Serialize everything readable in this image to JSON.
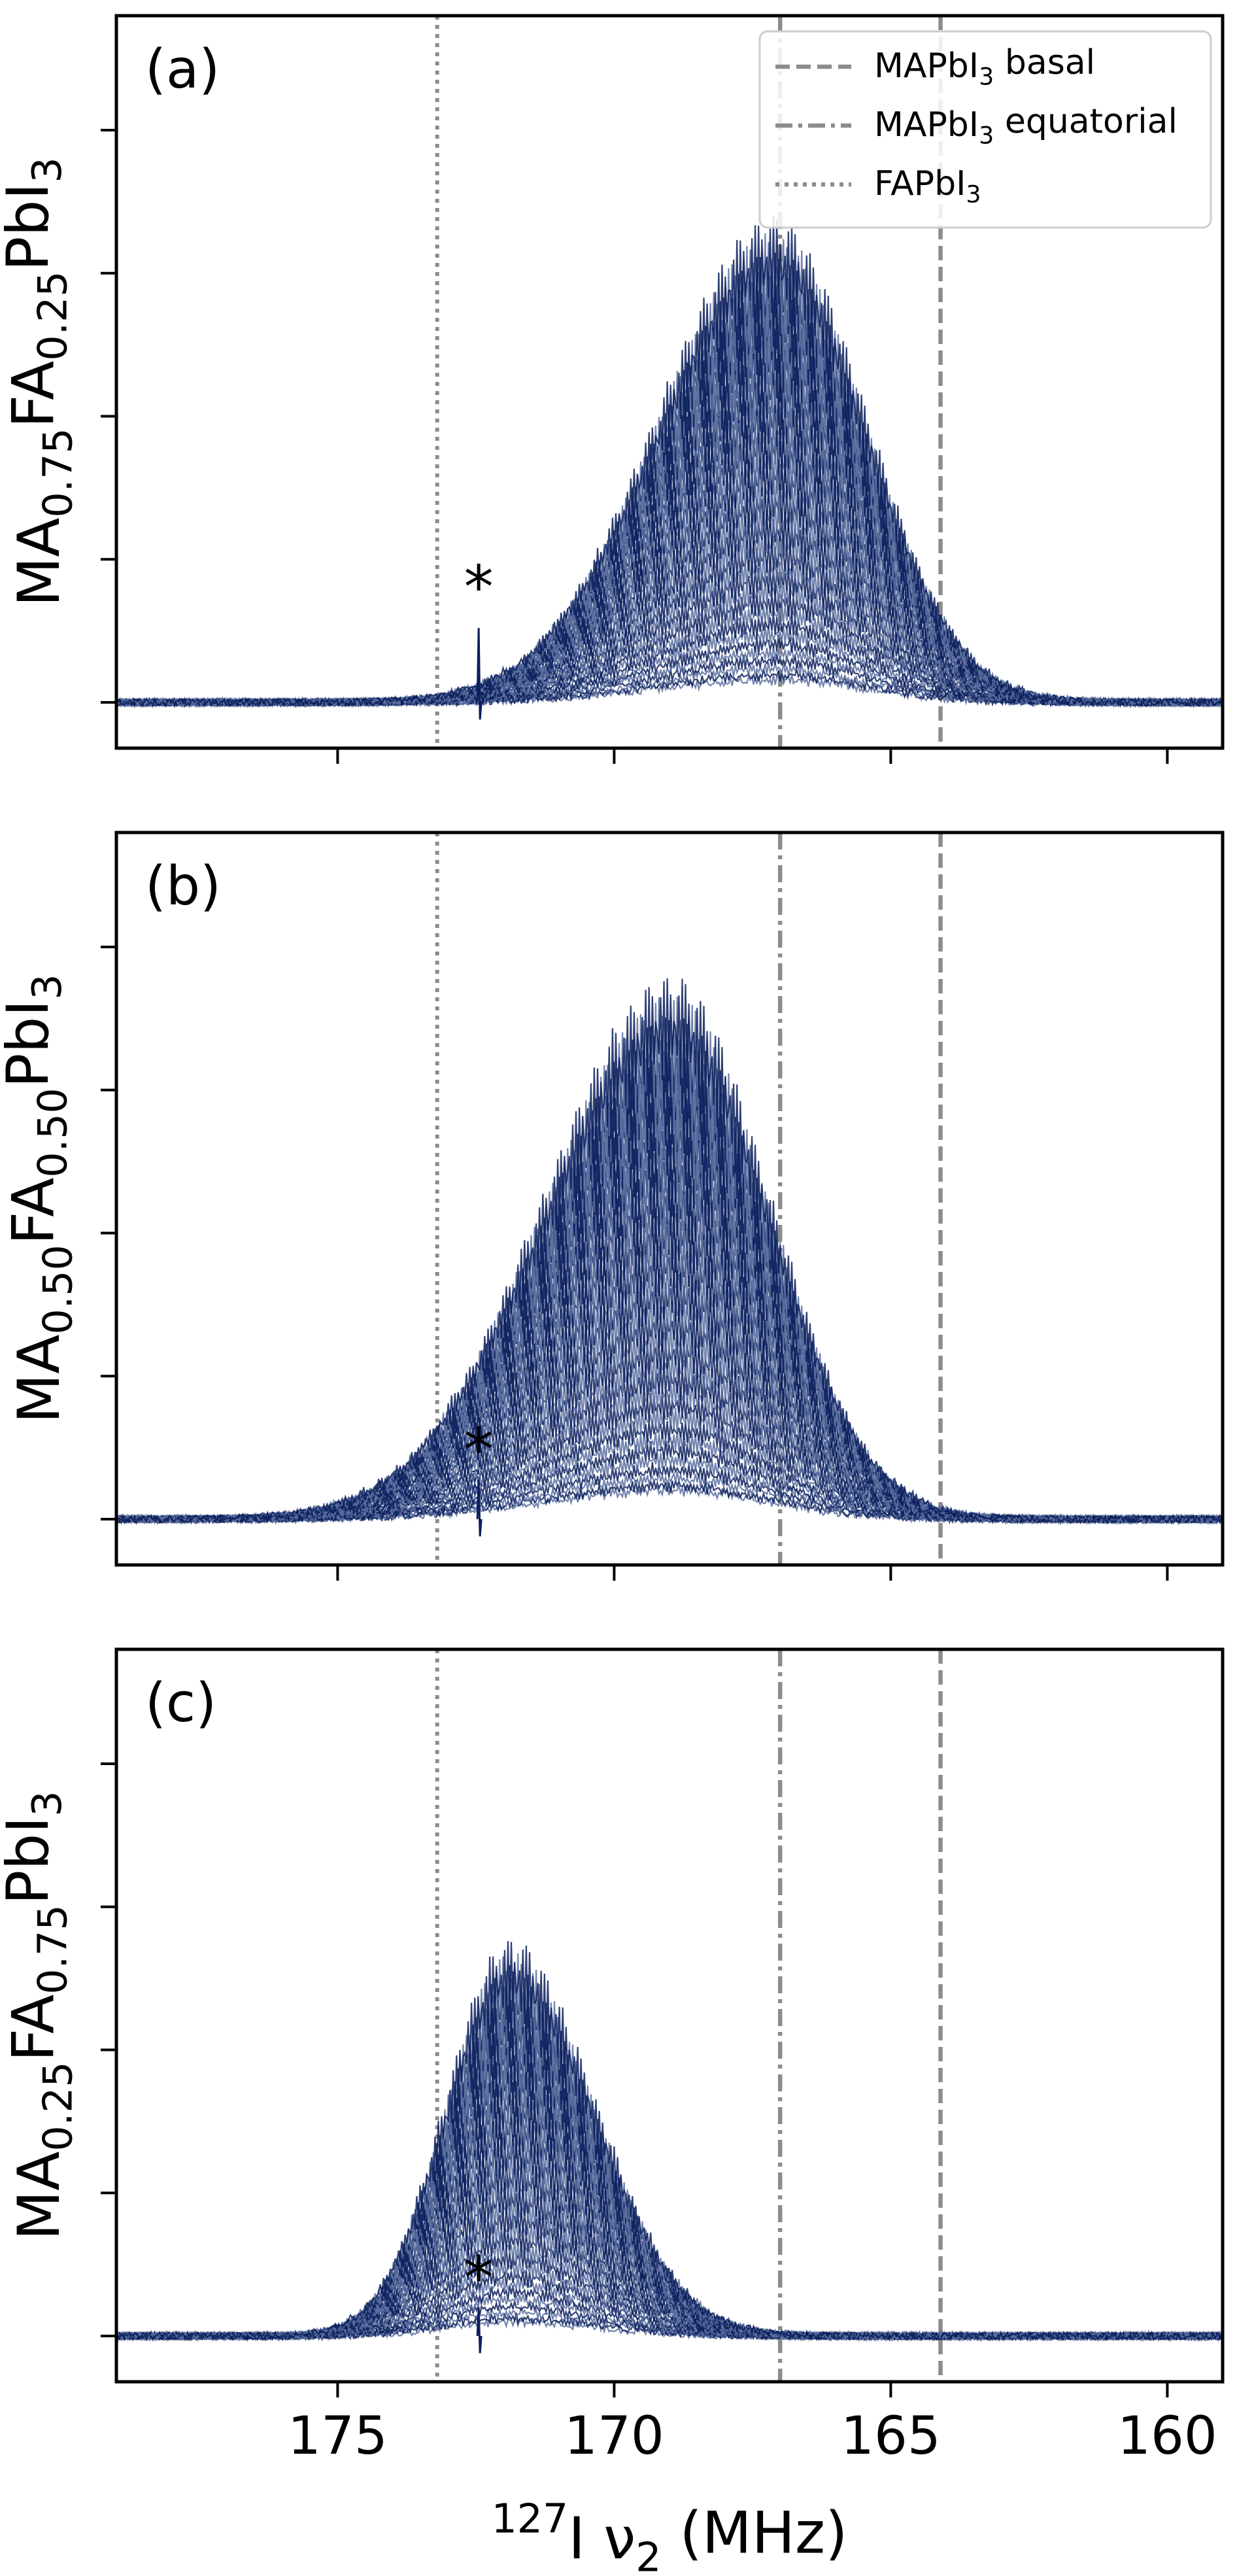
{
  "chart_data": [
    {
      "type": "line",
      "panel_label": "(a)",
      "ylabel_parts": [
        {
          "t": "MA",
          "s": "base"
        },
        {
          "t": "0.75",
          "s": "sub"
        },
        {
          "t": "FA",
          "s": "base"
        },
        {
          "t": "0.25",
          "s": "sub"
        },
        {
          "t": "PbI",
          "s": "base"
        },
        {
          "t": "3",
          "s": "sub"
        }
      ],
      "xlim": [
        179,
        159
      ],
      "ylim": [
        -0.08,
        1.2
      ],
      "y_ticks": [
        0,
        0.25,
        0.5,
        0.75,
        1.0
      ],
      "x_ticks": [
        175,
        170,
        165,
        160
      ],
      "peak_center_MHz": 167.1,
      "peak_height": 0.76,
      "peak_width_left": 2.1,
      "peak_width_right": 1.65,
      "minor_height": 0.04,
      "impurity_MHz": 172.45,
      "impurity_height": 0.13,
      "annotation": "*",
      "annotation_x": 172.45,
      "annotation_y": 0.2
    },
    {
      "type": "line",
      "panel_label": "(b)",
      "ylabel_parts": [
        {
          "t": "MA",
          "s": "base"
        },
        {
          "t": "0.50",
          "s": "sub"
        },
        {
          "t": "FA",
          "s": "base"
        },
        {
          "t": "0.50",
          "s": "sub"
        },
        {
          "t": "PbI",
          "s": "base"
        },
        {
          "t": "3",
          "s": "sub"
        }
      ],
      "xlim": [
        179,
        159
      ],
      "ylim": [
        -0.08,
        1.2
      ],
      "y_ticks": [
        0,
        0.25,
        0.5,
        0.75,
        1.0
      ],
      "x_ticks": [
        175,
        170,
        165,
        160
      ],
      "peak_center_MHz": 168.95,
      "peak_height": 0.85,
      "peak_width_left": 2.3,
      "peak_width_right": 1.75,
      "minor_height": 0.05,
      "impurity_MHz": 172.45,
      "impurity_height": 0.07,
      "annotation": "*",
      "annotation_x": 172.45,
      "annotation_y": 0.12
    },
    {
      "type": "line",
      "panel_label": "(c)",
      "ylabel_parts": [
        {
          "t": "MA",
          "s": "base"
        },
        {
          "t": "0.25",
          "s": "sub"
        },
        {
          "t": "FA",
          "s": "base"
        },
        {
          "t": "0.75",
          "s": "sub"
        },
        {
          "t": "PbI",
          "s": "base"
        },
        {
          "t": "3",
          "s": "sub"
        }
      ],
      "xlim": [
        179,
        159
      ],
      "ylim": [
        -0.08,
        1.2
      ],
      "y_ticks": [
        0,
        0.25,
        0.5,
        0.75,
        1.0
      ],
      "x_ticks": [
        175,
        170,
        165,
        160
      ],
      "peak_center_MHz": 171.9,
      "peak_height": 0.62,
      "peak_width_left": 1.15,
      "peak_width_right": 1.55,
      "minor_height": 0.025,
      "impurity_MHz": 172.45,
      "impurity_height": 0.05,
      "annotation": "*",
      "annotation_x": 172.45,
      "annotation_y": 0.1
    }
  ],
  "reference_lines": [
    {
      "name": "MAPbI3 basal",
      "label_parts": [
        {
          "t": "MAPbI",
          "s": "base"
        },
        {
          "t": "3",
          "s": "sub"
        },
        {
          "t": " basal",
          "s": "base"
        }
      ],
      "x": 164.1,
      "style": "dashed"
    },
    {
      "name": "MAPbI3 equatorial",
      "label_parts": [
        {
          "t": "MAPbI",
          "s": "base"
        },
        {
          "t": "3",
          "s": "sub"
        },
        {
          "t": " equatorial",
          "s": "base"
        }
      ],
      "x": 167.0,
      "style": "dashdot"
    },
    {
      "name": "FAPbI3",
      "label_parts": [
        {
          "t": "FAPbI",
          "s": "base"
        },
        {
          "t": "3",
          "s": "sub"
        }
      ],
      "x": 173.2,
      "style": "dotted"
    }
  ],
  "xlabel_parts": [
    {
      "t": "127",
      "s": "sup"
    },
    {
      "t": "I ν",
      "s": "base"
    },
    {
      "t": "2",
      "s": "sub"
    },
    {
      "t": " (MHz)",
      "s": "base"
    }
  ],
  "legend_location": "top-right (panel a)",
  "colors": {
    "spectrum": "#0b1f5c",
    "spectrum_fill": "#5a6e9f",
    "reference": "#8c8c8c",
    "axes": "#000000"
  }
}
